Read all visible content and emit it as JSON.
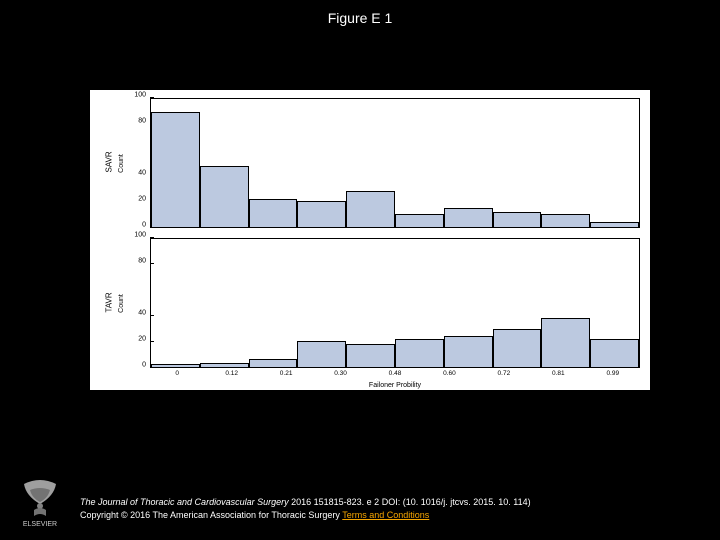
{
  "title": "Figure E 1",
  "chart": {
    "background": "#ffffff",
    "bar_fill": "#bcc9e0",
    "bar_stroke": "#000000",
    "x_label": "Failoner Probility",
    "x_ticks": [
      "0",
      "0.12",
      "0.21",
      "0.30",
      "0.48",
      "0.60",
      "0.72",
      "0.81",
      "0.99"
    ],
    "panels": [
      {
        "y_label": "SAVR",
        "count_label": "Count",
        "ymax": 100,
        "y_ticks": [
          0,
          20,
          40,
          80,
          100
        ],
        "values": [
          90,
          48,
          22,
          20,
          28,
          10,
          15,
          12,
          10,
          4
        ]
      },
      {
        "y_label": "TAVR",
        "count_label": "Count",
        "ymax": 100,
        "y_ticks": [
          0,
          20,
          40,
          80,
          100
        ],
        "values": [
          2,
          3,
          6,
          20,
          18,
          22,
          24,
          30,
          38,
          22
        ]
      }
    ]
  },
  "footer": {
    "journal": "The Journal of Thoracic and Cardiovascular Surgery",
    "citation_rest": " 2016 151815-823. e 2 DOI: (10. 1016/j. jtcvs. 2015. 10. 114)",
    "copyright_prefix": "Copyright © 2016 The American Association for Thoracic Surgery ",
    "terms_text": "Terms and Conditions",
    "logo_label": "ELSEVIER"
  }
}
